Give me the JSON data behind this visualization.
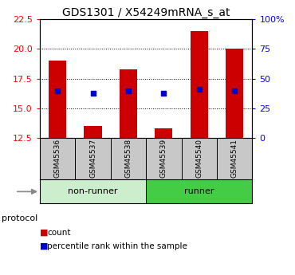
{
  "title": "GDS1301 / X54249mRNA_s_at",
  "samples": [
    "GSM45536",
    "GSM45537",
    "GSM45538",
    "GSM45539",
    "GSM45540",
    "GSM45541"
  ],
  "bar_tops": [
    19.0,
    13.5,
    18.3,
    13.3,
    21.5,
    20.0
  ],
  "bar_bottom": 12.5,
  "percentile_values": [
    16.5,
    16.3,
    16.5,
    16.3,
    16.6,
    16.5
  ],
  "ylim": [
    12.5,
    22.5
  ],
  "yticks_left": [
    12.5,
    15.0,
    17.5,
    20.0,
    22.5
  ],
  "yticks_right_labels": [
    "0",
    "25",
    "50",
    "75",
    "100%"
  ],
  "bar_color": "#cc0000",
  "blue_color": "#0000cc",
  "nonrunner_color": "#cceecc",
  "runner_color": "#44cc44",
  "label_bg_color": "#c8c8c8",
  "title_fontsize": 10,
  "tick_fontsize": 8,
  "sample_fontsize": 6.5,
  "group_fontsize": 8,
  "legend_fontsize": 7.5
}
